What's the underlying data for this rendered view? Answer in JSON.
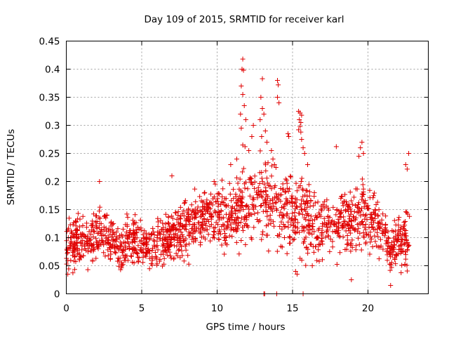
{
  "chart_data": {
    "type": "scatter",
    "title": "Day 109 of 2015, SRMTID for receiver karl",
    "xlabel": "GPS time / hours",
    "ylabel": "SRMTID / TECUs",
    "xlim": [
      0,
      24
    ],
    "ylim": [
      0,
      0.45
    ],
    "grid": true,
    "marker": "+",
    "series_color": "#e00000",
    "x_ticks": [
      {
        "value": 0,
        "label": "0"
      },
      {
        "value": 5,
        "label": "5"
      },
      {
        "value": 10,
        "label": "10"
      },
      {
        "value": 15,
        "label": "15"
      },
      {
        "value": 20,
        "label": "20"
      }
    ],
    "y_ticks": [
      {
        "value": 0,
        "label": "0"
      },
      {
        "value": 0.05,
        "label": "0.05"
      },
      {
        "value": 0.1,
        "label": "0.1"
      },
      {
        "value": 0.15,
        "label": "0.15"
      },
      {
        "value": 0.2,
        "label": "0.2"
      },
      {
        "value": 0.25,
        "label": "0.25"
      },
      {
        "value": 0.3,
        "label": "0.3"
      },
      {
        "value": 0.35,
        "label": "0.35"
      },
      {
        "value": 0.4,
        "label": "0.4"
      },
      {
        "value": 0.45,
        "label": "0.45"
      }
    ],
    "trend": [
      {
        "x": 0.0,
        "y": 0.085,
        "spread": 0.035
      },
      {
        "x": 1.0,
        "y": 0.09,
        "spread": 0.035
      },
      {
        "x": 2.0,
        "y": 0.1,
        "spread": 0.04
      },
      {
        "x": 2.5,
        "y": 0.115,
        "spread": 0.04
      },
      {
        "x": 3.5,
        "y": 0.08,
        "spread": 0.03
      },
      {
        "x": 4.5,
        "y": 0.1,
        "spread": 0.035
      },
      {
        "x": 5.5,
        "y": 0.08,
        "spread": 0.03
      },
      {
        "x": 6.5,
        "y": 0.095,
        "spread": 0.035
      },
      {
        "x": 8.0,
        "y": 0.12,
        "spread": 0.04
      },
      {
        "x": 9.5,
        "y": 0.145,
        "spread": 0.04
      },
      {
        "x": 10.5,
        "y": 0.135,
        "spread": 0.04
      },
      {
        "x": 11.5,
        "y": 0.15,
        "spread": 0.05
      },
      {
        "x": 12.5,
        "y": 0.17,
        "spread": 0.06
      },
      {
        "x": 13.5,
        "y": 0.17,
        "spread": 0.06
      },
      {
        "x": 14.5,
        "y": 0.14,
        "spread": 0.05
      },
      {
        "x": 15.5,
        "y": 0.15,
        "spread": 0.06
      },
      {
        "x": 16.5,
        "y": 0.12,
        "spread": 0.045
      },
      {
        "x": 17.5,
        "y": 0.12,
        "spread": 0.045
      },
      {
        "x": 18.5,
        "y": 0.125,
        "spread": 0.045
      },
      {
        "x": 19.5,
        "y": 0.14,
        "spread": 0.05
      },
      {
        "x": 20.5,
        "y": 0.13,
        "spread": 0.045
      },
      {
        "x": 21.5,
        "y": 0.08,
        "spread": 0.03
      },
      {
        "x": 22.5,
        "y": 0.1,
        "spread": 0.045
      }
    ],
    "n_samples": 1700,
    "highlights": [
      {
        "x": 11.7,
        "y": 0.418
      },
      {
        "x": 11.65,
        "y": 0.4
      },
      {
        "x": 11.75,
        "y": 0.398
      },
      {
        "x": 11.6,
        "y": 0.37
      },
      {
        "x": 11.7,
        "y": 0.355
      },
      {
        "x": 11.8,
        "y": 0.335
      },
      {
        "x": 11.9,
        "y": 0.31
      },
      {
        "x": 11.55,
        "y": 0.32
      },
      {
        "x": 11.6,
        "y": 0.295
      },
      {
        "x": 11.7,
        "y": 0.265
      },
      {
        "x": 11.85,
        "y": 0.262
      },
      {
        "x": 12.3,
        "y": 0.28
      },
      {
        "x": 12.4,
        "y": 0.3
      },
      {
        "x": 12.1,
        "y": 0.255
      },
      {
        "x": 11.3,
        "y": 0.24
      },
      {
        "x": 10.9,
        "y": 0.23
      },
      {
        "x": 13.0,
        "y": 0.383
      },
      {
        "x": 12.9,
        "y": 0.35
      },
      {
        "x": 13.0,
        "y": 0.33
      },
      {
        "x": 13.1,
        "y": 0.32
      },
      {
        "x": 12.85,
        "y": 0.31
      },
      {
        "x": 13.2,
        "y": 0.29
      },
      {
        "x": 12.95,
        "y": 0.28
      },
      {
        "x": 13.3,
        "y": 0.27
      },
      {
        "x": 13.6,
        "y": 0.255
      },
      {
        "x": 13.7,
        "y": 0.24
      },
      {
        "x": 13.8,
        "y": 0.23
      },
      {
        "x": 13.9,
        "y": 0.225
      },
      {
        "x": 14.0,
        "y": 0.38
      },
      {
        "x": 14.05,
        "y": 0.372
      },
      {
        "x": 14.0,
        "y": 0.35
      },
      {
        "x": 14.1,
        "y": 0.34
      },
      {
        "x": 14.7,
        "y": 0.285
      },
      {
        "x": 14.75,
        "y": 0.28
      },
      {
        "x": 15.4,
        "y": 0.325
      },
      {
        "x": 15.5,
        "y": 0.322
      },
      {
        "x": 15.6,
        "y": 0.318
      },
      {
        "x": 15.45,
        "y": 0.31
      },
      {
        "x": 15.55,
        "y": 0.305
      },
      {
        "x": 15.5,
        "y": 0.298
      },
      {
        "x": 15.4,
        "y": 0.292
      },
      {
        "x": 15.55,
        "y": 0.288
      },
      {
        "x": 15.6,
        "y": 0.275
      },
      {
        "x": 15.7,
        "y": 0.26
      },
      {
        "x": 15.8,
        "y": 0.25
      },
      {
        "x": 16.0,
        "y": 0.23
      },
      {
        "x": 17.9,
        "y": 0.262
      },
      {
        "x": 19.6,
        "y": 0.27
      },
      {
        "x": 19.5,
        "y": 0.26
      },
      {
        "x": 19.7,
        "y": 0.25
      },
      {
        "x": 19.4,
        "y": 0.245
      },
      {
        "x": 22.7,
        "y": 0.25
      },
      {
        "x": 22.5,
        "y": 0.23
      },
      {
        "x": 22.6,
        "y": 0.222
      },
      {
        "x": 2.2,
        "y": 0.2
      },
      {
        "x": 7.0,
        "y": 0.21
      },
      {
        "x": 9.8,
        "y": 0.2
      },
      {
        "x": 18.9,
        "y": 0.025
      },
      {
        "x": 21.5,
        "y": 0.015
      },
      {
        "x": 0.1,
        "y": 0.035
      },
      {
        "x": 15.3,
        "y": 0.035
      },
      {
        "x": 15.2,
        "y": 0.04
      },
      {
        "x": 13.1,
        "y": 0.0
      },
      {
        "x": 13.15,
        "y": 0.0
      },
      {
        "x": 13.95,
        "y": 0.0
      },
      {
        "x": 15.7,
        "y": 0.0
      }
    ]
  }
}
